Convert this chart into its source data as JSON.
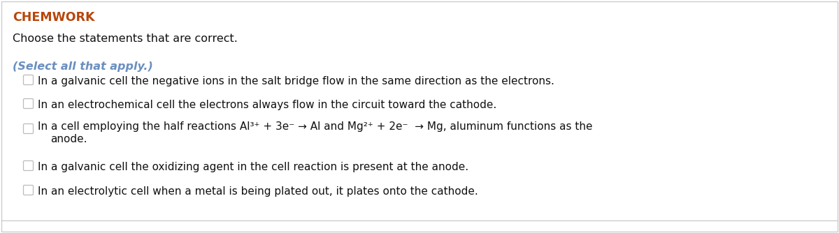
{
  "title": "CHEMWORK",
  "title_color": "#b8460b",
  "subtitle": "Choose the statements that are correct.",
  "subtitle_color": "#111111",
  "select_text": "(Select all that apply.)",
  "select_color": "#6a8fc0",
  "background_color": "#ffffff",
  "border_color": "#cccccc",
  "option_color": "#111111",
  "checkbox_color": "#bbbbbb",
  "font_size_title": 12.5,
  "font_size_subtitle": 11.5,
  "font_size_select": 11.5,
  "font_size_option": 11.0,
  "fig_width": 12.0,
  "fig_height": 3.34,
  "dpi": 100
}
